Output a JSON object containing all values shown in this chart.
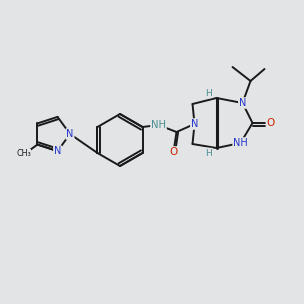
{
  "bg_color": "#e2e4e6",
  "bond_color": "#1a1a1a",
  "n_color": "#2233cc",
  "o_color": "#cc2200",
  "h_color": "#4a9090",
  "figsize": [
    3.0,
    3.0
  ],
  "dpi": 100,
  "lw": 1.4,
  "fs": 7.0
}
